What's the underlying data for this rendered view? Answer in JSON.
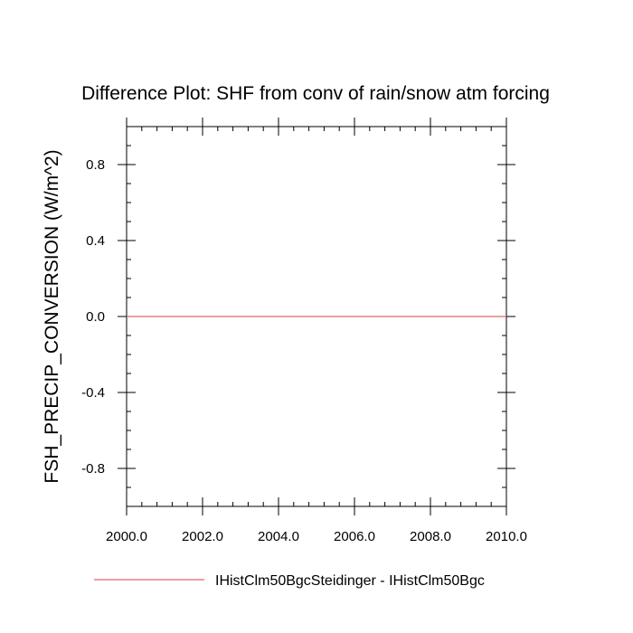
{
  "chart_data": {
    "type": "line",
    "title": "Difference Plot: SHF from conv of rain/snow atm forcing",
    "xlabel": "",
    "ylabel": "FSH_PRECIP_CONVERSION  (W/m^2)",
    "xlim": [
      2000.0,
      2010.0
    ],
    "ylim": [
      -1.0,
      1.0
    ],
    "x_major_ticks": [
      2000.0,
      2002.0,
      2004.0,
      2006.0,
      2008.0,
      2010.0
    ],
    "x_tick_labels": [
      "2000.0",
      "2002.0",
      "2004.0",
      "2006.0",
      "2008.0",
      "2010.0"
    ],
    "y_major_ticks": [
      -0.8,
      -0.4,
      0.0,
      0.4,
      0.8
    ],
    "y_tick_labels": [
      "-0.8",
      "-0.4",
      "0.0",
      "0.4",
      "0.8"
    ],
    "x_minor_step": 0.4,
    "y_minor_step": 0.1,
    "grid": false,
    "legend_position": "bottom",
    "series": [
      {
        "name": "IHistClm50BgcSteidinger - IHistClm50Bgc",
        "color": "#e06666",
        "x": [
          2000.0,
          2010.0
        ],
        "y": [
          0.0,
          0.0
        ]
      }
    ]
  }
}
